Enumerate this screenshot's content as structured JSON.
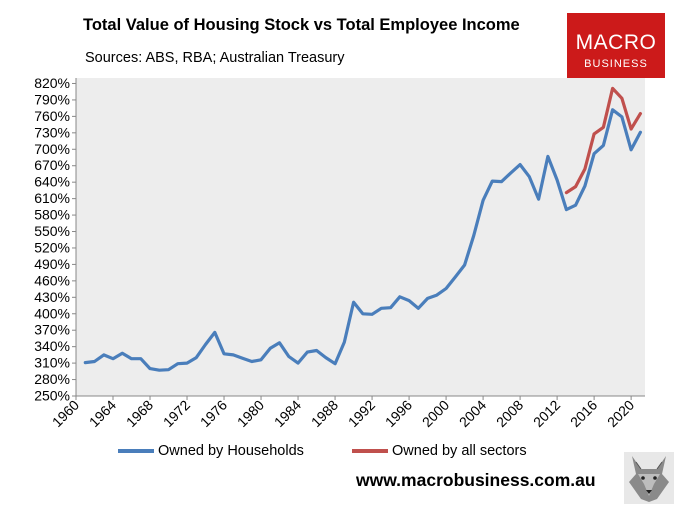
{
  "chart_data": {
    "type": "line",
    "title": "Total Value of Housing Stock vs Total Employee Income",
    "subtitle": "Sources: ABS, RBA; Australian Treasury",
    "xlabel": "",
    "ylabel": "",
    "x_ticks": [
      "1960",
      "1964",
      "1968",
      "1972",
      "1976",
      "1980",
      "1984",
      "1988",
      "1992",
      "1996",
      "2000",
      "2004",
      "2008",
      "2012",
      "2016",
      "2020"
    ],
    "y_ticks": [
      "250%",
      "280%",
      "310%",
      "340%",
      "370%",
      "400%",
      "430%",
      "460%",
      "490%",
      "520%",
      "550%",
      "580%",
      "610%",
      "640%",
      "670%",
      "700%",
      "730%",
      "760%",
      "790%",
      "820%"
    ],
    "xlim": [
      1960,
      2021.5
    ],
    "ylim": [
      250,
      830
    ],
    "grid": false,
    "legend_position": "bottom",
    "series": [
      {
        "name": "Owned by Households",
        "color": "#4a7ebb",
        "x": [
          1961,
          1962,
          1963,
          1964,
          1965,
          1966,
          1967,
          1968,
          1969,
          1970,
          1971,
          1972,
          1973,
          1974,
          1975,
          1976,
          1977,
          1978,
          1979,
          1980,
          1981,
          1982,
          1983,
          1984,
          1985,
          1986,
          1987,
          1988,
          1989,
          1990,
          1991,
          1992,
          1993,
          1994,
          1995,
          1996,
          1997,
          1998,
          1999,
          2000,
          2001,
          2002,
          2003,
          2004,
          2005,
          2006,
          2007,
          2008,
          2009,
          2010,
          2011,
          2012,
          2013,
          2014,
          2015,
          2016,
          2017,
          2018,
          2019,
          2020,
          2021
        ],
        "values": [
          311,
          313,
          325,
          318,
          328,
          318,
          318,
          300,
          297,
          298,
          309,
          310,
          320,
          344,
          366,
          327,
          325,
          319,
          313,
          316,
          337,
          347,
          322,
          310,
          330,
          333,
          320,
          309,
          348,
          421,
          400,
          399,
          410,
          411,
          431,
          424,
          410,
          428,
          434,
          446,
          467,
          489,
          543,
          607,
          642,
          641,
          657,
          672,
          650,
          609,
          687,
          644,
          590,
          598,
          633,
          692,
          707,
          772,
          759,
          699,
          731
        ]
      },
      {
        "name": "Owned by all sectors",
        "color": "#c0504d",
        "x": [
          2013,
          2014,
          2015,
          2016,
          2017,
          2018,
          2019,
          2020,
          2021
        ],
        "values": [
          621,
          632,
          664,
          728,
          740,
          811,
          793,
          737,
          765
        ]
      }
    ]
  },
  "legend": {
    "households_label": "Owned by Households",
    "all_sectors_label": "Owned by all sectors"
  },
  "logo": {
    "line1": "MACRO",
    "line2": "BUSINESS",
    "bg_color": "#cc1a1a"
  },
  "website": "www.macrobusiness.com.au"
}
